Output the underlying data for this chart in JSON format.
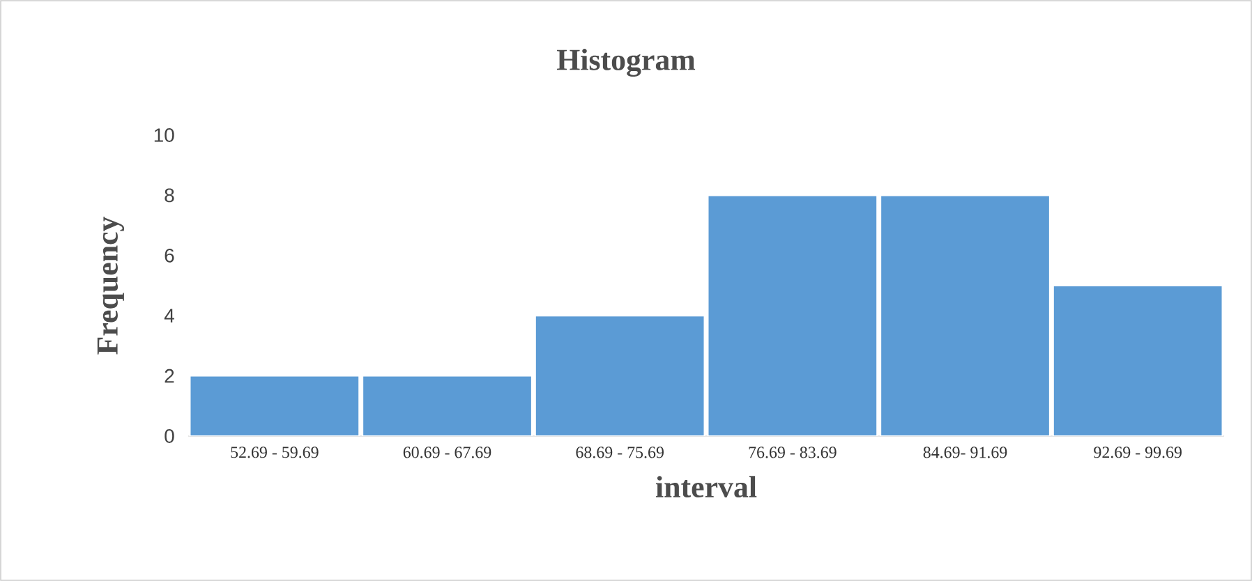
{
  "chart_data": {
    "type": "bar",
    "title": "Histogram",
    "xlabel": "interval",
    "ylabel": "Frequency",
    "categories": [
      "52.69 - 59.69",
      "60.69 - 67.69",
      "68.69 - 75.69",
      "76.69 - 83.69",
      "84.69- 91.69",
      "92.69 - 99.69"
    ],
    "values": [
      2,
      2,
      4,
      8,
      8,
      5
    ],
    "color": "#5b9bd5",
    "ylim": [
      0,
      10
    ],
    "yticks": [
      0,
      2,
      4,
      6,
      8,
      10
    ]
  }
}
